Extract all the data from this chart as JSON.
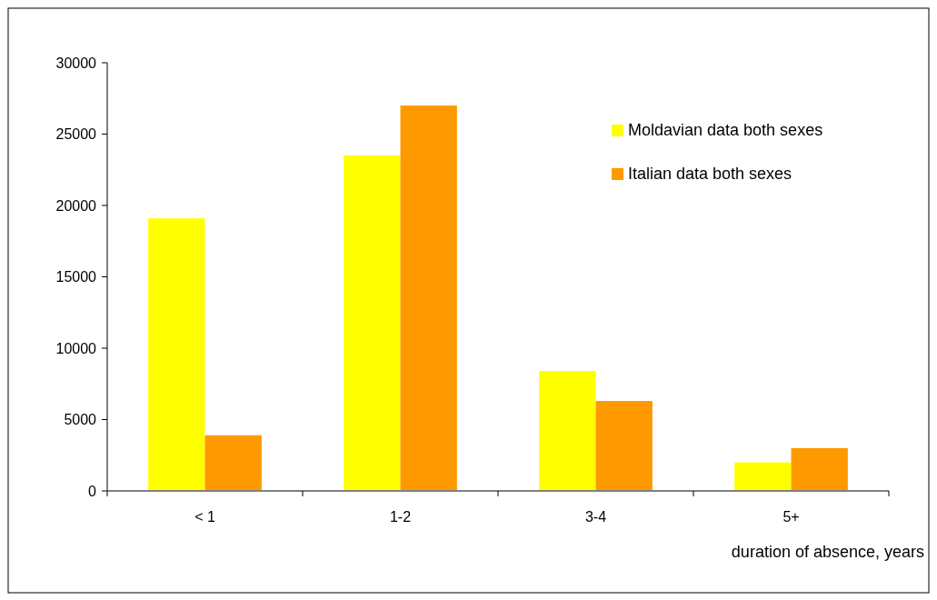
{
  "chart_data": {
    "type": "bar",
    "xlabel": "duration of absence, years",
    "categories": [
      "< 1",
      "1-2",
      "3-4",
      "5+"
    ],
    "series": [
      {
        "name": "Moldavian data  both sexes",
        "color": "#ffff00",
        "values": [
          19100,
          23500,
          8400,
          2000
        ]
      },
      {
        "name": "Italian data both sexes",
        "color": "#ff9900",
        "values": [
          3900,
          27000,
          6300,
          3000
        ]
      }
    ],
    "ylim": [
      0,
      30000
    ],
    "yticks": [
      0,
      5000,
      10000,
      15000,
      20000,
      25000,
      30000
    ],
    "legend": "top right"
  }
}
